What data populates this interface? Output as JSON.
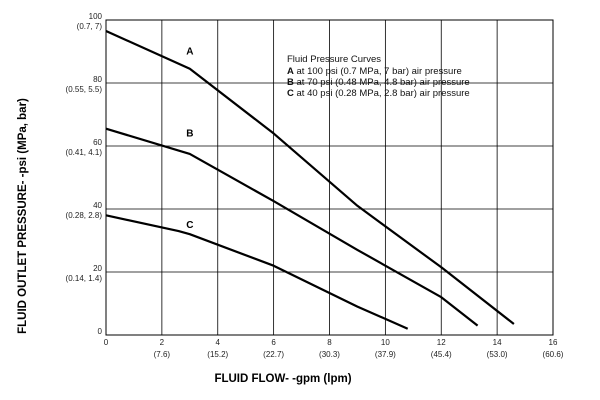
{
  "chart_data": {
    "type": "line",
    "xlabel": "FLUID FLOW- -gpm (lpm)",
    "ylabel": "FLUID OUTLET PRESSURE- -psi (MPa, bar)",
    "xlim": [
      0,
      16
    ],
    "ylim": [
      0,
      100
    ],
    "x_ticks": [
      {
        "value": 0,
        "label": "0",
        "sublabel": ""
      },
      {
        "value": 2,
        "label": "2",
        "sublabel": "(7.6)"
      },
      {
        "value": 4,
        "label": "4",
        "sublabel": "(15.2)"
      },
      {
        "value": 6,
        "label": "6",
        "sublabel": "(22.7)"
      },
      {
        "value": 8,
        "label": "8",
        "sublabel": "(30.3)"
      },
      {
        "value": 10,
        "label": "10",
        "sublabel": "(37.9)"
      },
      {
        "value": 12,
        "label": "12",
        "sublabel": "(45.4)"
      },
      {
        "value": 14,
        "label": "14",
        "sublabel": "(53.0)"
      },
      {
        "value": 16,
        "label": "16",
        "sublabel": "(60.6)"
      }
    ],
    "y_ticks": [
      {
        "value": 0,
        "label": "0",
        "sublabel": ""
      },
      {
        "value": 20,
        "label": "20",
        "sublabel": "(0.14, 1.4)"
      },
      {
        "value": 40,
        "label": "40",
        "sublabel": "(0.28, 2.8)"
      },
      {
        "value": 60,
        "label": "60",
        "sublabel": "(0.41, 4.1)"
      },
      {
        "value": 80,
        "label": "80",
        "sublabel": "(0.55, 5.5)"
      },
      {
        "value": 100,
        "label": "100",
        "sublabel": "(0.7, 7)"
      }
    ],
    "grid": true,
    "series": [
      {
        "name": "A",
        "points": [
          [
            0,
            96.5
          ],
          [
            3,
            84.5
          ],
          [
            6,
            64
          ],
          [
            9,
            41
          ],
          [
            12,
            21.5
          ],
          [
            14.6,
            3.5
          ]
        ]
      },
      {
        "name": "B",
        "points": [
          [
            0,
            65.5
          ],
          [
            3,
            57.5
          ],
          [
            6,
            42.5
          ],
          [
            9,
            27
          ],
          [
            12,
            12
          ],
          [
            13.3,
            3
          ]
        ]
      },
      {
        "name": "C",
        "points": [
          [
            0,
            38
          ],
          [
            2.6,
            33
          ],
          [
            3,
            32
          ],
          [
            6,
            22
          ],
          [
            9,
            9
          ],
          [
            10.8,
            2
          ]
        ]
      }
    ],
    "curve_labels": [
      {
        "text": "A",
        "x": 3.0,
        "y": 89
      },
      {
        "text": "B",
        "x": 3.0,
        "y": 63
      },
      {
        "text": "C",
        "x": 3.0,
        "y": 34
      }
    ],
    "legend": {
      "title": "Fluid Pressure Curves",
      "entries": [
        {
          "key": "A",
          "text": " at 100 psi (0.7 MPa, 7 bar) air pressure"
        },
        {
          "key": "B",
          "text": " at 70 psi (0.48 MPa, 4.8 bar) air pressure"
        },
        {
          "key": "C",
          "text": " at 40 psi (0.28 MPa, 2.8 bar) air pressure"
        }
      ],
      "position": "top-right"
    }
  }
}
